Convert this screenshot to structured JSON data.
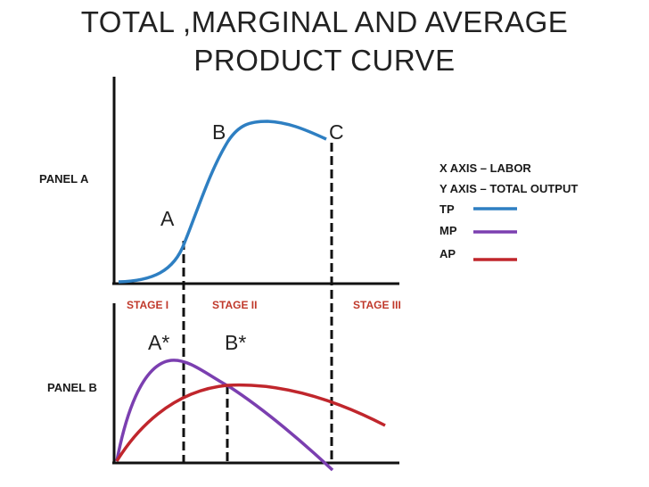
{
  "title": {
    "line1": "TOTAL ,MARGINAL AND AVERAGE",
    "line2": "PRODUCT CURVE"
  },
  "panels": {
    "a_label": "PANEL A",
    "b_label": "PANEL B"
  },
  "points": {
    "a": "A",
    "b": "B",
    "c": "C",
    "a_star": "A*",
    "b_star": "B*"
  },
  "stages": [
    "STAGE I",
    "STAGE II",
    "STAGE III"
  ],
  "legend": {
    "x_axis": "X AXIS – LABOR",
    "y_axis": "Y AXIS – TOTAL OUTPUT",
    "items": [
      {
        "label": "TP",
        "color": "#2e7fc2"
      },
      {
        "label": "MP",
        "color": "#7b3fb0"
      },
      {
        "label": "AP",
        "color": "#c0262c"
      }
    ]
  },
  "colors": {
    "tp": "#2e7fc2",
    "mp": "#7b3fb0",
    "ap": "#c0262c",
    "stage_text": "#c0392b",
    "axis": "#111111"
  }
}
